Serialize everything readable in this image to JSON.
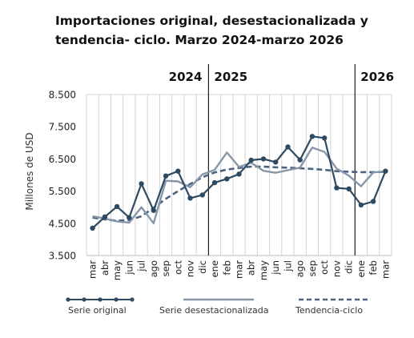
{
  "chart_data": {
    "type": "line",
    "title": "Importaciones original, desestacionalizada y tendencia- ciclo. Marzo 2024-marzo 2026",
    "ylabel": "Millones de USD",
    "xlabel": "",
    "ylim": [
      3500,
      8500
    ],
    "yticks": [
      "3.500",
      "4.500",
      "5.500",
      "6.500",
      "7.500",
      "8.500"
    ],
    "ytick_values": [
      3500,
      4500,
      5500,
      6500,
      7500,
      8500
    ],
    "categories": [
      "mar",
      "abr",
      "may",
      "jun",
      "jul",
      "ago",
      "sep",
      "oct",
      "nov",
      "dic",
      "ene",
      "feb",
      "mar",
      "abr",
      "may",
      "jun",
      "jul",
      "ago",
      "sep",
      "oct",
      "nov",
      "dic",
      "ene",
      "feb",
      "mar"
    ],
    "year_labels": [
      {
        "label": "2024",
        "category_index": 0
      },
      {
        "label": "2025",
        "category_index": 10
      },
      {
        "label": "2026",
        "category_index": 22
      }
    ],
    "year_dividers_after_index": [
      9,
      21
    ],
    "grid": "vertical",
    "legend_position": "bottom",
    "series": [
      {
        "name": "Serie original",
        "style": "line-markers",
        "color": "#2e4a63",
        "values": [
          4350,
          4700,
          5020,
          4680,
          5730,
          4900,
          5970,
          6120,
          5280,
          5380,
          5760,
          5880,
          6030,
          6460,
          6500,
          6400,
          6870,
          6470,
          7200,
          7150,
          5600,
          5570,
          5070,
          5180,
          6120
        ]
      },
      {
        "name": "Serie desestacionalizada",
        "style": "line",
        "color": "#8796a8",
        "values": [
          4720,
          4650,
          4560,
          4520,
          5000,
          4500,
          5820,
          5800,
          5620,
          6020,
          6160,
          6700,
          6250,
          6380,
          6130,
          6070,
          6150,
          6230,
          6850,
          6720,
          6200,
          5980,
          5650,
          6080,
          6120
        ]
      },
      {
        "name": "Tendencia-ciclo",
        "style": "dashed",
        "color": "#4a6482",
        "values": [
          4680,
          4620,
          4580,
          4600,
          4720,
          4980,
          5260,
          5500,
          5720,
          5930,
          6080,
          6170,
          6220,
          6260,
          6260,
          6240,
          6230,
          6210,
          6190,
          6160,
          6120,
          6100,
          6090,
          6090,
          6100
        ]
      }
    ]
  }
}
